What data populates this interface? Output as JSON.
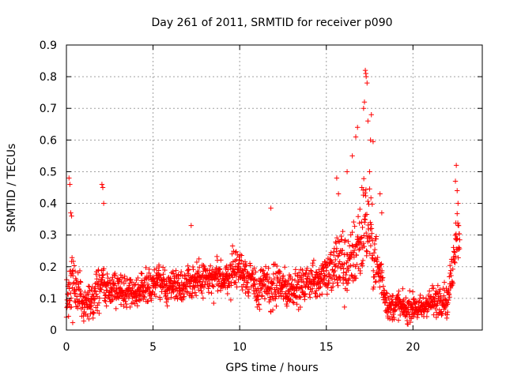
{
  "chart_data": {
    "type": "scatter",
    "title": "Day 261 of 2011, SRMTID for receiver p090",
    "xlabel": "GPS time / hours",
    "ylabel": "SRMTID / TECUs",
    "xlim": [
      0,
      24
    ],
    "ylim": [
      0,
      0.9
    ],
    "xticks": [
      0,
      5,
      10,
      15,
      20
    ],
    "xtick_labels": [
      "0",
      "5",
      "10",
      "15",
      "20"
    ],
    "yticks": [
      0,
      0.1,
      0.2,
      0.3,
      0.4,
      0.5,
      0.6,
      0.7,
      0.8,
      0.9
    ],
    "ytick_labels": [
      "0",
      "0.1",
      "0.2",
      "0.3",
      "0.4",
      "0.5",
      "0.6",
      "0.7",
      "0.8",
      "0.9"
    ],
    "grid": true,
    "marker": "plus",
    "series_color": "#ff0000",
    "envelope": [
      {
        "t": 0.0,
        "c": 0.1,
        "s": 0.08
      },
      {
        "t": 0.5,
        "c": 0.15,
        "s": 0.12
      },
      {
        "t": 1.0,
        "c": 0.06,
        "s": 0.05
      },
      {
        "t": 1.5,
        "c": 0.1,
        "s": 0.06
      },
      {
        "t": 2.0,
        "c": 0.15,
        "s": 0.1
      },
      {
        "t": 2.5,
        "c": 0.12,
        "s": 0.06
      },
      {
        "t": 3.0,
        "c": 0.13,
        "s": 0.06
      },
      {
        "t": 4.0,
        "c": 0.12,
        "s": 0.05
      },
      {
        "t": 5.0,
        "c": 0.15,
        "s": 0.06
      },
      {
        "t": 6.0,
        "c": 0.14,
        "s": 0.06
      },
      {
        "t": 7.0,
        "c": 0.15,
        "s": 0.06
      },
      {
        "t": 8.0,
        "c": 0.16,
        "s": 0.06
      },
      {
        "t": 9.0,
        "c": 0.16,
        "s": 0.06
      },
      {
        "t": 10.0,
        "c": 0.2,
        "s": 0.07
      },
      {
        "t": 11.0,
        "c": 0.13,
        "s": 0.07
      },
      {
        "t": 12.0,
        "c": 0.14,
        "s": 0.08
      },
      {
        "t": 13.0,
        "c": 0.13,
        "s": 0.06
      },
      {
        "t": 14.0,
        "c": 0.15,
        "s": 0.06
      },
      {
        "t": 15.0,
        "c": 0.18,
        "s": 0.08
      },
      {
        "t": 16.0,
        "c": 0.22,
        "s": 0.14
      },
      {
        "t": 16.5,
        "c": 0.2,
        "s": 0.12
      },
      {
        "t": 17.2,
        "c": 0.35,
        "s": 0.18
      },
      {
        "t": 18.0,
        "c": 0.2,
        "s": 0.1
      },
      {
        "t": 18.5,
        "c": 0.08,
        "s": 0.05
      },
      {
        "t": 19.5,
        "c": 0.07,
        "s": 0.05
      },
      {
        "t": 20.5,
        "c": 0.07,
        "s": 0.05
      },
      {
        "t": 21.5,
        "c": 0.1,
        "s": 0.06
      },
      {
        "t": 22.0,
        "c": 0.09,
        "s": 0.05
      },
      {
        "t": 22.5,
        "c": 0.3,
        "s": 0.1
      }
    ],
    "peaks": [
      {
        "x": 0.15,
        "y": 0.48
      },
      {
        "x": 0.2,
        "y": 0.46
      },
      {
        "x": 0.25,
        "y": 0.37
      },
      {
        "x": 0.3,
        "y": 0.36
      },
      {
        "x": 2.05,
        "y": 0.46
      },
      {
        "x": 2.1,
        "y": 0.45
      },
      {
        "x": 2.15,
        "y": 0.4
      },
      {
        "x": 7.2,
        "y": 0.33
      },
      {
        "x": 11.8,
        "y": 0.385
      },
      {
        "x": 15.6,
        "y": 0.48
      },
      {
        "x": 15.7,
        "y": 0.43
      },
      {
        "x": 16.2,
        "y": 0.5
      },
      {
        "x": 16.5,
        "y": 0.55
      },
      {
        "x": 16.7,
        "y": 0.61
      },
      {
        "x": 16.8,
        "y": 0.64
      },
      {
        "x": 17.05,
        "y": 0.45
      },
      {
        "x": 17.15,
        "y": 0.7
      },
      {
        "x": 17.2,
        "y": 0.72
      },
      {
        "x": 17.25,
        "y": 0.82
      },
      {
        "x": 17.28,
        "y": 0.81
      },
      {
        "x": 17.3,
        "y": 0.8
      },
      {
        "x": 17.35,
        "y": 0.78
      },
      {
        "x": 17.4,
        "y": 0.66
      },
      {
        "x": 17.55,
        "y": 0.6
      },
      {
        "x": 17.6,
        "y": 0.68
      },
      {
        "x": 17.7,
        "y": 0.595
      },
      {
        "x": 17.5,
        "y": 0.5
      },
      {
        "x": 18.1,
        "y": 0.43
      },
      {
        "x": 18.2,
        "y": 0.37
      },
      {
        "x": 22.5,
        "y": 0.52
      },
      {
        "x": 22.45,
        "y": 0.47
      },
      {
        "x": 22.55,
        "y": 0.44
      },
      {
        "x": 22.6,
        "y": 0.4
      }
    ]
  }
}
